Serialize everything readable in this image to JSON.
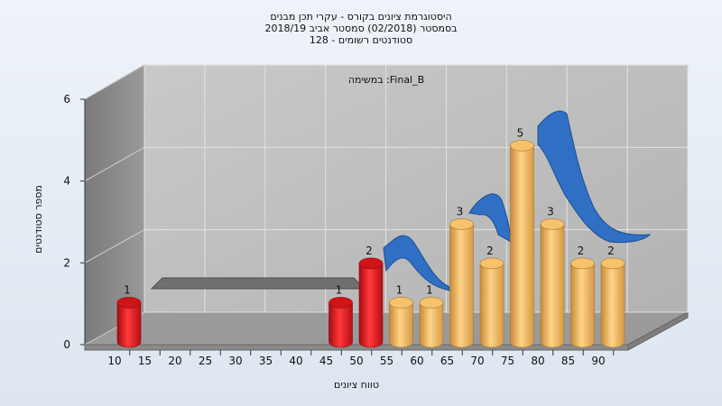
{
  "chart_data": {
    "type": "bar",
    "title_lines": [
      "היסטוגרמת ציונים בקורס - עקרי תכן מבנים",
      "בסמסטר  (02/2018)  סמסטר אביב 2018/19",
      "סטודנטים רשומים - 128"
    ],
    "annotation": "במשימה :Final_B",
    "xlabel": "טווח ציונים",
    "ylabel": "מספר סטודנטים",
    "x_ticks": [
      "10",
      "15",
      "20",
      "25",
      "30",
      "35",
      "40",
      "45",
      "50",
      "55",
      "60",
      "65",
      "70",
      "75",
      "80",
      "85",
      "90"
    ],
    "y_ticks": [
      "0",
      "2",
      "4",
      "6"
    ],
    "ylim": [
      0,
      6
    ],
    "grid": true,
    "bars": [
      {
        "bin": "10-15",
        "value": 1,
        "color": "red"
      },
      {
        "bin": "15-20",
        "value": 0,
        "color": "red"
      },
      {
        "bin": "20-25",
        "value": 0,
        "color": "red"
      },
      {
        "bin": "25-30",
        "value": 0,
        "color": "red"
      },
      {
        "bin": "30-35",
        "value": 0,
        "color": "red"
      },
      {
        "bin": "35-40",
        "value": 0,
        "color": "red"
      },
      {
        "bin": "40-45",
        "value": 0,
        "color": "red"
      },
      {
        "bin": "45-50",
        "value": 1,
        "color": "red"
      },
      {
        "bin": "50-55",
        "value": 2,
        "color": "red"
      },
      {
        "bin": "55-60",
        "value": 1,
        "color": "orange"
      },
      {
        "bin": "60-65",
        "value": 1,
        "color": "orange"
      },
      {
        "bin": "65-70",
        "value": 3,
        "color": "orange"
      },
      {
        "bin": "70-75",
        "value": 2,
        "color": "orange"
      },
      {
        "bin": "75-80",
        "value": 5,
        "color": "orange"
      },
      {
        "bin": "80-85",
        "value": 3,
        "color": "orange"
      },
      {
        "bin": "85-90",
        "value": 2,
        "color": "orange"
      },
      {
        "bin": "90-95",
        "value": 2,
        "color": "orange"
      }
    ],
    "colors": {
      "red_bar": "#e3161b",
      "orange_bar": "#f0b050",
      "blue_ribbon": "#2f6fc4",
      "gray_ribbon": "#6f6f6f",
      "back_wall": "#bdbdbd",
      "left_wall": "#8a8a8a",
      "floor": "#9b9b9b"
    }
  }
}
